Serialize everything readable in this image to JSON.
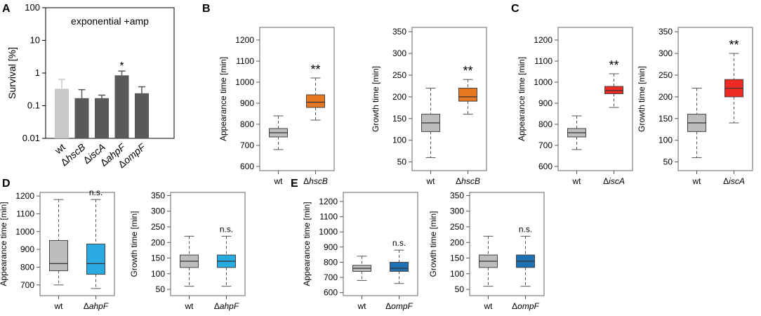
{
  "panel_labels": [
    "A",
    "B",
    "C",
    "D",
    "E"
  ],
  "colors": {
    "wt": "#bdbdbd",
    "mutant_bar": "#595959",
    "ahpF_bar": "#595959",
    "hscB": "#e87722",
    "iscA": "#ee2a24",
    "ahpF": "#29abe2",
    "ompF": "#1f6fb4",
    "light_bar": "#c8c8c8"
  },
  "chart_data": [
    {
      "id": "A",
      "type": "bar",
      "scale": "log",
      "ylabel": "Survival [%]",
      "legend_text": "exponential +amp",
      "yticks": [
        0.01,
        0.1,
        1,
        10,
        100
      ],
      "ytick_labels": [
        "0.01",
        "0.1",
        "1",
        "10",
        "100"
      ],
      "ylim": [
        0.01,
        100
      ],
      "categories": [
        {
          "prefix": "",
          "name": "wt"
        },
        {
          "prefix": "Δ",
          "name": "hscB"
        },
        {
          "prefix": "Δ",
          "name": "iscA"
        },
        {
          "prefix": "Δ",
          "name": "ahpF"
        },
        {
          "prefix": "Δ",
          "name": "ompF"
        }
      ],
      "values": [
        0.33,
        0.17,
        0.17,
        0.85,
        0.24
      ],
      "errors": [
        0.64,
        0.31,
        0.21,
        1.15,
        0.38
      ],
      "significance": [
        "",
        "",
        "",
        "*",
        ""
      ]
    },
    {
      "id": "B1",
      "type": "box",
      "ylabel": "Appearance time [min]",
      "ylim": [
        580,
        1260
      ],
      "yticks": [
        600,
        700,
        800,
        900,
        1000,
        1100,
        1200
      ],
      "ytick_labels": [
        "600",
        "700",
        "800",
        "900",
        "1000",
        "1100",
        "1200"
      ],
      "categories": [
        {
          "prefix": "",
          "name": "wt"
        },
        {
          "prefix": "Δ",
          "name": "hscB"
        }
      ],
      "boxes": [
        {
          "min": 680,
          "q1": 740,
          "median": 760,
          "q3": 780,
          "max": 840,
          "color": "wt"
        },
        {
          "min": 820,
          "q1": 880,
          "median": 905,
          "q3": 940,
          "max": 1020,
          "color": "hscB"
        }
      ],
      "significance": "**"
    },
    {
      "id": "B2",
      "type": "box",
      "ylabel": "Growth time [min]",
      "ylim": [
        30,
        360
      ],
      "yticks": [
        50,
        100,
        150,
        200,
        250,
        300,
        350
      ],
      "ytick_labels": [
        "50",
        "100",
        "150",
        "200",
        "250",
        "300",
        "350"
      ],
      "categories": [
        {
          "prefix": "",
          "name": "wt"
        },
        {
          "prefix": "Δ",
          "name": "hscB"
        }
      ],
      "boxes": [
        {
          "min": 60,
          "q1": 120,
          "median": 140,
          "q3": 160,
          "max": 220,
          "color": "wt"
        },
        {
          "min": 160,
          "q1": 190,
          "median": 200,
          "q3": 220,
          "max": 240,
          "color": "hscB"
        }
      ],
      "significance": "**"
    },
    {
      "id": "C1",
      "type": "box",
      "ylabel": "Appearance time [min]",
      "ylim": [
        580,
        1260
      ],
      "yticks": [
        600,
        700,
        800,
        900,
        1000,
        1100,
        1200
      ],
      "ytick_labels": [
        "600",
        "700",
        "800",
        "900",
        "1000",
        "1100",
        "1200"
      ],
      "categories": [
        {
          "prefix": "",
          "name": "wt"
        },
        {
          "prefix": "Δ",
          "name": "iscA"
        }
      ],
      "boxes": [
        {
          "min": 680,
          "q1": 740,
          "median": 760,
          "q3": 780,
          "max": 840,
          "color": "wt"
        },
        {
          "min": 880,
          "q1": 945,
          "median": 960,
          "q3": 980,
          "max": 1040,
          "color": "iscA"
        }
      ],
      "significance": "**"
    },
    {
      "id": "C2",
      "type": "box",
      "ylabel": "Growth time [min]",
      "ylim": [
        30,
        360
      ],
      "yticks": [
        50,
        100,
        150,
        200,
        250,
        300,
        350
      ],
      "ytick_labels": [
        "50",
        "100",
        "150",
        "200",
        "250",
        "300",
        "350"
      ],
      "categories": [
        {
          "prefix": "",
          "name": "wt"
        },
        {
          "prefix": "Δ",
          "name": "iscA"
        }
      ],
      "boxes": [
        {
          "min": 60,
          "q1": 120,
          "median": 140,
          "q3": 160,
          "max": 220,
          "color": "wt"
        },
        {
          "min": 140,
          "q1": 200,
          "median": 220,
          "q3": 240,
          "max": 300,
          "color": "iscA"
        }
      ],
      "significance": "**"
    },
    {
      "id": "D1",
      "type": "box",
      "ylabel": "Appearance time [min]",
      "ylim": [
        640,
        1220
      ],
      "yticks": [
        700,
        800,
        900,
        1000,
        1100,
        1200
      ],
      "ytick_labels": [
        "700",
        "800",
        "900",
        "1000",
        "1100",
        "1200"
      ],
      "categories": [
        {
          "prefix": "",
          "name": "wt"
        },
        {
          "prefix": "Δ",
          "name": "ahpF"
        }
      ],
      "boxes": [
        {
          "min": 700,
          "q1": 780,
          "median": 820,
          "q3": 950,
          "max": 1180,
          "color": "wt"
        },
        {
          "min": 680,
          "q1": 760,
          "median": 820,
          "q3": 930,
          "max": 1180,
          "color": "ahpF"
        }
      ],
      "significance": "n.s."
    },
    {
      "id": "D2",
      "type": "box",
      "ylabel": "Growth time [min]",
      "ylim": [
        30,
        360
      ],
      "yticks": [
        50,
        100,
        150,
        200,
        250,
        300,
        350
      ],
      "ytick_labels": [
        "50",
        "100",
        "150",
        "200",
        "250",
        "300",
        "350"
      ],
      "categories": [
        {
          "prefix": "",
          "name": "wt"
        },
        {
          "prefix": "Δ",
          "name": "ahpF"
        }
      ],
      "boxes": [
        {
          "min": 60,
          "q1": 120,
          "median": 140,
          "q3": 160,
          "max": 220,
          "color": "wt"
        },
        {
          "min": 60,
          "q1": 120,
          "median": 140,
          "q3": 160,
          "max": 220,
          "color": "ahpF"
        }
      ],
      "significance": "n.s."
    },
    {
      "id": "E1",
      "type": "box",
      "ylabel": "Appearance time [min]",
      "ylim": [
        580,
        1260
      ],
      "yticks": [
        600,
        700,
        800,
        900,
        1000,
        1100,
        1200
      ],
      "ytick_labels": [
        "600",
        "700",
        "800",
        "900",
        "1000",
        "1100",
        "1200"
      ],
      "categories": [
        {
          "prefix": "",
          "name": "wt"
        },
        {
          "prefix": "Δ",
          "name": "ompF"
        }
      ],
      "boxes": [
        {
          "min": 680,
          "q1": 740,
          "median": 760,
          "q3": 780,
          "max": 840,
          "color": "wt"
        },
        {
          "min": 660,
          "q1": 740,
          "median": 760,
          "q3": 800,
          "max": 880,
          "color": "ompF"
        }
      ],
      "significance": "n.s."
    },
    {
      "id": "E2",
      "type": "box",
      "ylabel": "Growth time [min]",
      "ylim": [
        30,
        360
      ],
      "yticks": [
        50,
        100,
        150,
        200,
        250,
        300,
        350
      ],
      "ytick_labels": [
        "50",
        "100",
        "150",
        "200",
        "250",
        "300",
        "350"
      ],
      "categories": [
        {
          "prefix": "",
          "name": "wt"
        },
        {
          "prefix": "Δ",
          "name": "ompF"
        }
      ],
      "boxes": [
        {
          "min": 60,
          "q1": 120,
          "median": 140,
          "q3": 160,
          "max": 220,
          "color": "wt"
        },
        {
          "min": 60,
          "q1": 120,
          "median": 140,
          "q3": 160,
          "max": 220,
          "color": "ompF"
        }
      ],
      "significance": "n.s."
    }
  ]
}
